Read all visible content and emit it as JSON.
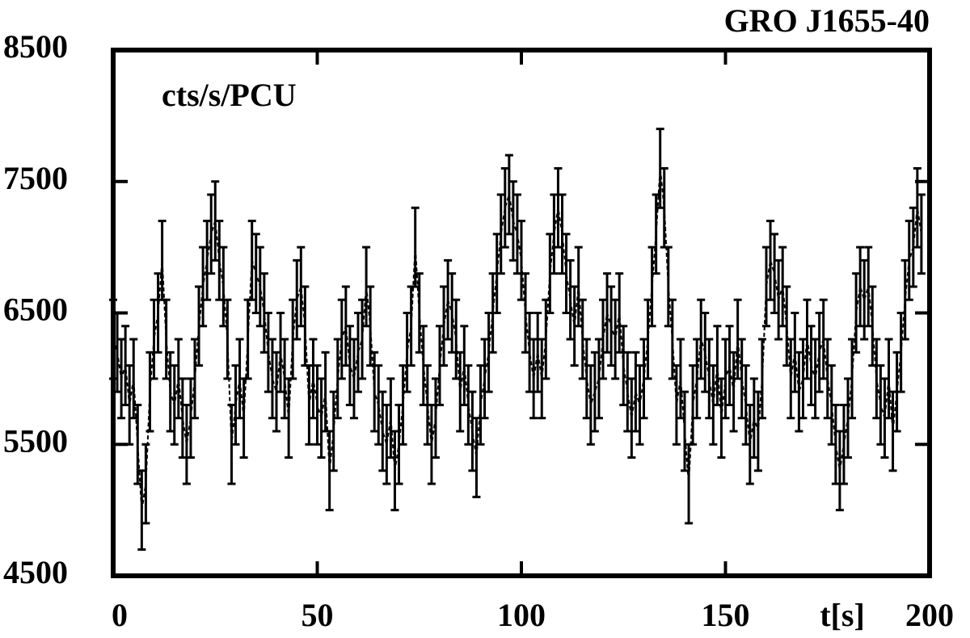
{
  "chart_data": {
    "type": "errorbar_line",
    "title": "GRO J1655-40",
    "annotation": "cts/s/PCU",
    "xlabel": "t[s]",
    "x": [
      0,
      1,
      2,
      3,
      4,
      5,
      6,
      7,
      8,
      9,
      10,
      11,
      12,
      13,
      14,
      15,
      16,
      17,
      18,
      19,
      20,
      21,
      22,
      23,
      24,
      25,
      26,
      27,
      28,
      29,
      30,
      31,
      32,
      33,
      34,
      35,
      36,
      37,
      38,
      39,
      40,
      41,
      42,
      43,
      44,
      45,
      46,
      47,
      48,
      49,
      50,
      51,
      52,
      53,
      54,
      55,
      56,
      57,
      58,
      59,
      60,
      61,
      62,
      63,
      64,
      65,
      66,
      67,
      68,
      69,
      70,
      71,
      72,
      73,
      74,
      75,
      76,
      77,
      78,
      79,
      80,
      81,
      82,
      83,
      84,
      85,
      86,
      87,
      88,
      89,
      90,
      91,
      92,
      93,
      94,
      95,
      96,
      97,
      98,
      99,
      100,
      101,
      102,
      103,
      104,
      105,
      106,
      107,
      108,
      109,
      110,
      111,
      112,
      113,
      114,
      115,
      116,
      117,
      118,
      119,
      120,
      121,
      122,
      123,
      124,
      125,
      126,
      127,
      128,
      129,
      130,
      131,
      132,
      133,
      134,
      135,
      136,
      137,
      138,
      139,
      140,
      141,
      142,
      143,
      144,
      145,
      146,
      147,
      148,
      149,
      150,
      151,
      152,
      153,
      154,
      155,
      156,
      157,
      158,
      159,
      160,
      161,
      162,
      163,
      164,
      165,
      166,
      167,
      168,
      169,
      170,
      171,
      172,
      173,
      174,
      175,
      176,
      177,
      178,
      179,
      180,
      181,
      182,
      183,
      184,
      185,
      186,
      187,
      188,
      189,
      190,
      191,
      192,
      193,
      194,
      195,
      196,
      197,
      198
    ],
    "values": [
      6300,
      6200,
      6000,
      6100,
      5800,
      6000,
      5500,
      5000,
      5200,
      5900,
      6300,
      6500,
      6900,
      6300,
      5900,
      5800,
      6000,
      5700,
      5500,
      5700,
      6000,
      6400,
      6700,
      6900,
      7100,
      7200,
      6900,
      6700,
      6300,
      5500,
      5800,
      6000,
      5700,
      6300,
      6900,
      6800,
      6700,
      6500,
      6200,
      6000,
      5900,
      6200,
      6000,
      5700,
      6300,
      6600,
      6700,
      6400,
      5800,
      6000,
      5800,
      5700,
      5900,
      5300,
      5600,
      6000,
      6300,
      6400,
      6100,
      6000,
      6200,
      6300,
      6700,
      6400,
      5900,
      5800,
      5600,
      5500,
      5700,
      5300,
      5500,
      5800,
      6200,
      6400,
      7000,
      6500,
      6100,
      5800,
      5500,
      5700,
      6100,
      6400,
      6600,
      6500,
      6300,
      5900,
      6100,
      5800,
      5600,
      5400,
      5800,
      6000,
      6200,
      6500,
      6800,
      7100,
      7300,
      7400,
      7200,
      7100,
      6900,
      6500,
      6200,
      6000,
      6200,
      6000,
      6300,
      6800,
      7100,
      7300,
      7100,
      6800,
      6600,
      6400,
      6700,
      6300,
      6000,
      5800,
      5900,
      6000,
      6300,
      6500,
      6400,
      6300,
      6500,
      6100,
      5900,
      5700,
      5900,
      5800,
      6000,
      6300,
      6700,
      7100,
      7600,
      7300,
      6700,
      6300,
      5800,
      6000,
      5600,
      5200,
      5800,
      6000,
      6300,
      6200,
      6000,
      5800,
      6100,
      5700,
      6000,
      6100,
      5900,
      6300,
      6000,
      5800,
      5500,
      5700,
      5600,
      6000,
      6700,
      6900,
      6800,
      6600,
      6700,
      6400,
      6000,
      6200,
      5900,
      6000,
      6300,
      6100,
      6000,
      6200,
      6300,
      6000,
      5800,
      5500,
      5300,
      5500,
      5700,
      6000,
      6500,
      6700,
      6600,
      6700,
      6400,
      6000,
      5800,
      5700,
      6000,
      5600,
      5900,
      6200,
      6600,
      6900,
      7000,
      7300,
      7100
    ],
    "error": 300,
    "color": "#000000",
    "xlim": [
      0,
      200
    ],
    "xticks": [
      0,
      50,
      100,
      150,
      200
    ],
    "ylim": [
      4500,
      8500
    ],
    "yticks": [
      4500,
      5500,
      6500,
      7500,
      8500
    ]
  }
}
